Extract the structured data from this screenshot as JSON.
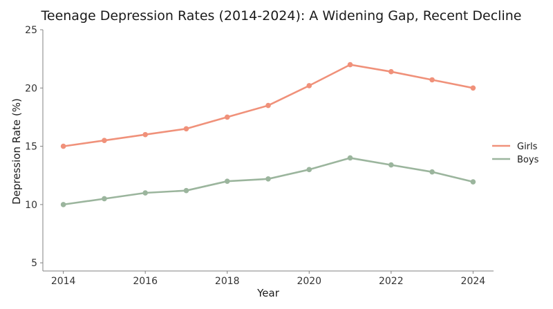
{
  "chart_data": {
    "type": "line",
    "title": "Teenage Depression Rates (2014-2024): A Widening Gap, Recent Decline",
    "xlabel": "Year",
    "ylabel": "Depression Rate (%)",
    "x": [
      2014,
      2015,
      2016,
      2017,
      2018,
      2019,
      2020,
      2021,
      2022,
      2023,
      2024
    ],
    "xticks": [
      2014,
      2016,
      2018,
      2020,
      2022,
      2024
    ],
    "yticks": [
      5,
      10,
      15,
      20,
      25
    ],
    "xlim": [
      2013.5,
      2024.5
    ],
    "ylim": [
      4.3,
      25
    ],
    "grid": false,
    "legend_position": "right",
    "series": [
      {
        "name": "Girls",
        "color": "#f0917a",
        "values": [
          15.0,
          15.5,
          16.0,
          16.5,
          17.5,
          18.5,
          20.2,
          22.0,
          21.4,
          20.7,
          20.0
        ]
      },
      {
        "name": "Boys",
        "color": "#9bb59d",
        "values": [
          10.0,
          10.5,
          11.0,
          11.2,
          12.0,
          12.2,
          13.0,
          14.0,
          13.4,
          12.8,
          11.95
        ]
      }
    ]
  }
}
